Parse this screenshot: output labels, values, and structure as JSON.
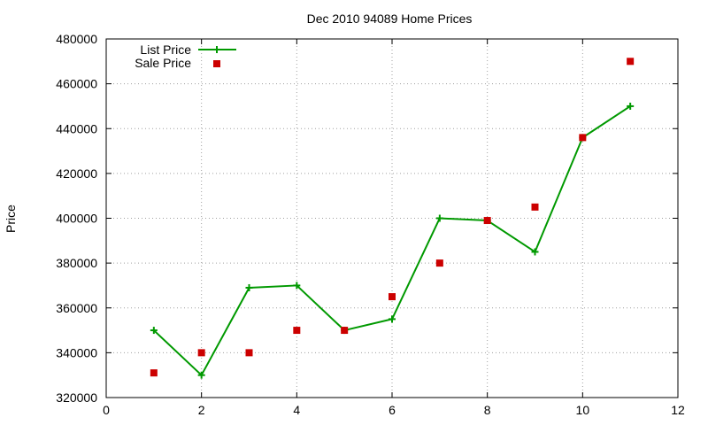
{
  "chart_data": {
    "type": "line",
    "title": "Dec 2010 94089 Home Prices",
    "xlabel": "",
    "ylabel": "Price",
    "xlim": [
      0,
      12
    ],
    "ylim": [
      320000,
      480000
    ],
    "x_ticks": [
      0,
      2,
      4,
      6,
      8,
      10,
      12
    ],
    "y_ticks": [
      320000,
      340000,
      360000,
      380000,
      400000,
      420000,
      440000,
      460000,
      480000
    ],
    "x_tick_labels": [
      "0",
      "2",
      "4",
      "6",
      "8",
      "10",
      "12"
    ],
    "y_tick_labels": [
      "320000",
      "340000",
      "360000",
      "380000",
      "400000",
      "420000",
      "440000",
      "460000",
      "480000"
    ],
    "grid": true,
    "legend_position": "top-left",
    "series": [
      {
        "name": "List Price",
        "style": "line-plus",
        "color": "#009900",
        "x": [
          1,
          2,
          3,
          4,
          5,
          6,
          7,
          8,
          9,
          10,
          11
        ],
        "y": [
          350000,
          330000,
          369000,
          370000,
          350000,
          355000,
          400000,
          399000,
          385000,
          436000,
          450000
        ]
      },
      {
        "name": "Sale Price",
        "style": "square-points",
        "color": "#cc0000",
        "x": [
          1,
          2,
          3,
          4,
          5,
          6,
          7,
          8,
          9,
          10,
          11
        ],
        "y": [
          331000,
          340000,
          340000,
          350000,
          350000,
          365000,
          380000,
          399000,
          405000,
          436000,
          470000
        ]
      }
    ]
  }
}
